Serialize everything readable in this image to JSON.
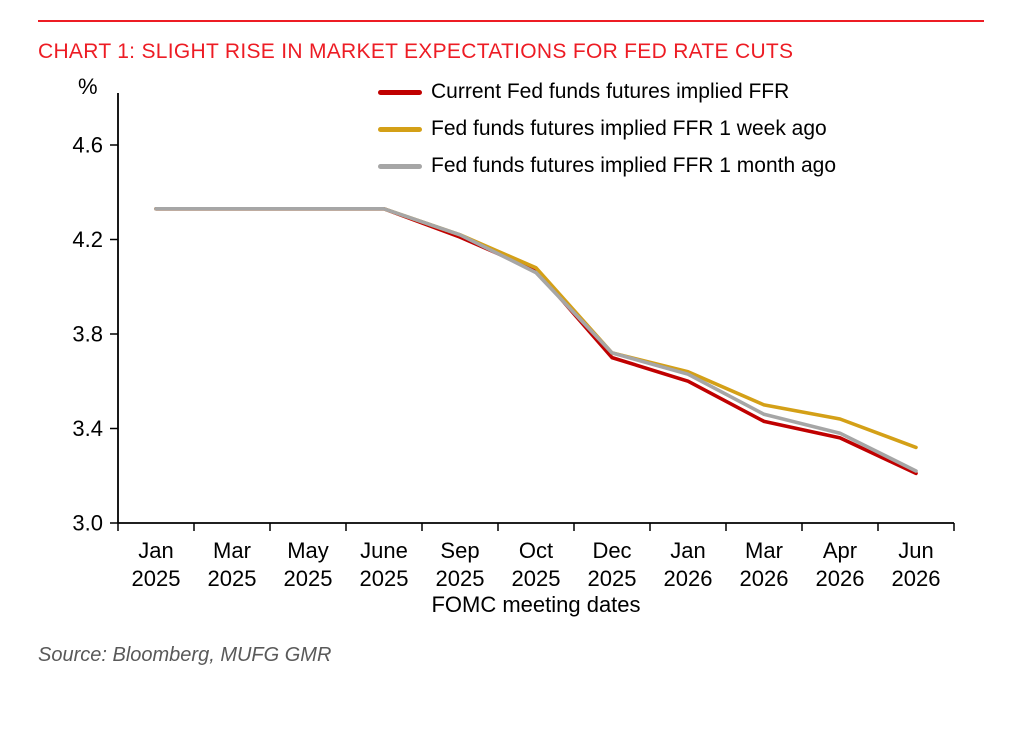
{
  "header": {
    "title": "CHART 1: SLIGHT RISE IN MARKET EXPECTATIONS FOR FED RATE CUTS",
    "accent_color": "#ed1c24"
  },
  "chart_data": {
    "type": "line",
    "title": "CHART 1: SLIGHT RISE IN MARKET EXPECTATIONS FOR FED RATE CUTS",
    "ylabel": "%",
    "xlabel": "FOMC meeting dates",
    "ylim": [
      3.0,
      4.82
    ],
    "yticks": [
      3.0,
      3.4,
      3.8,
      4.2,
      4.6
    ],
    "grid": false,
    "legend_position": "top-right",
    "categories": [
      {
        "month": "Jan",
        "year": "2025"
      },
      {
        "month": "Mar",
        "year": "2025"
      },
      {
        "month": "May",
        "year": "2025"
      },
      {
        "month": "June",
        "year": "2025"
      },
      {
        "month": "Sep",
        "year": "2025"
      },
      {
        "month": "Oct",
        "year": "2025"
      },
      {
        "month": "Dec",
        "year": "2025"
      },
      {
        "month": "Jan",
        "year": "2026"
      },
      {
        "month": "Mar",
        "year": "2026"
      },
      {
        "month": "Apr",
        "year": "2026"
      },
      {
        "month": "Jun",
        "year": "2026"
      }
    ],
    "series": [
      {
        "name": "Current Fed funds futures implied FFR",
        "color": "#c00000",
        "values": [
          4.33,
          4.33,
          4.33,
          4.33,
          4.21,
          4.07,
          3.7,
          3.6,
          3.43,
          3.36,
          3.21
        ]
      },
      {
        "name": "Fed funds futures implied FFR 1 week ago",
        "color": "#d4a017",
        "values": [
          4.33,
          4.33,
          4.33,
          4.33,
          4.22,
          4.08,
          3.72,
          3.64,
          3.5,
          3.44,
          3.32
        ]
      },
      {
        "name": "Fed funds futures implied FFR 1 month ago",
        "color": "#a6a6a6",
        "values": [
          4.33,
          4.33,
          4.33,
          4.33,
          4.22,
          4.06,
          3.72,
          3.63,
          3.46,
          3.38,
          3.22
        ]
      }
    ]
  },
  "source": "Source: Bloomberg, MUFG GMR"
}
